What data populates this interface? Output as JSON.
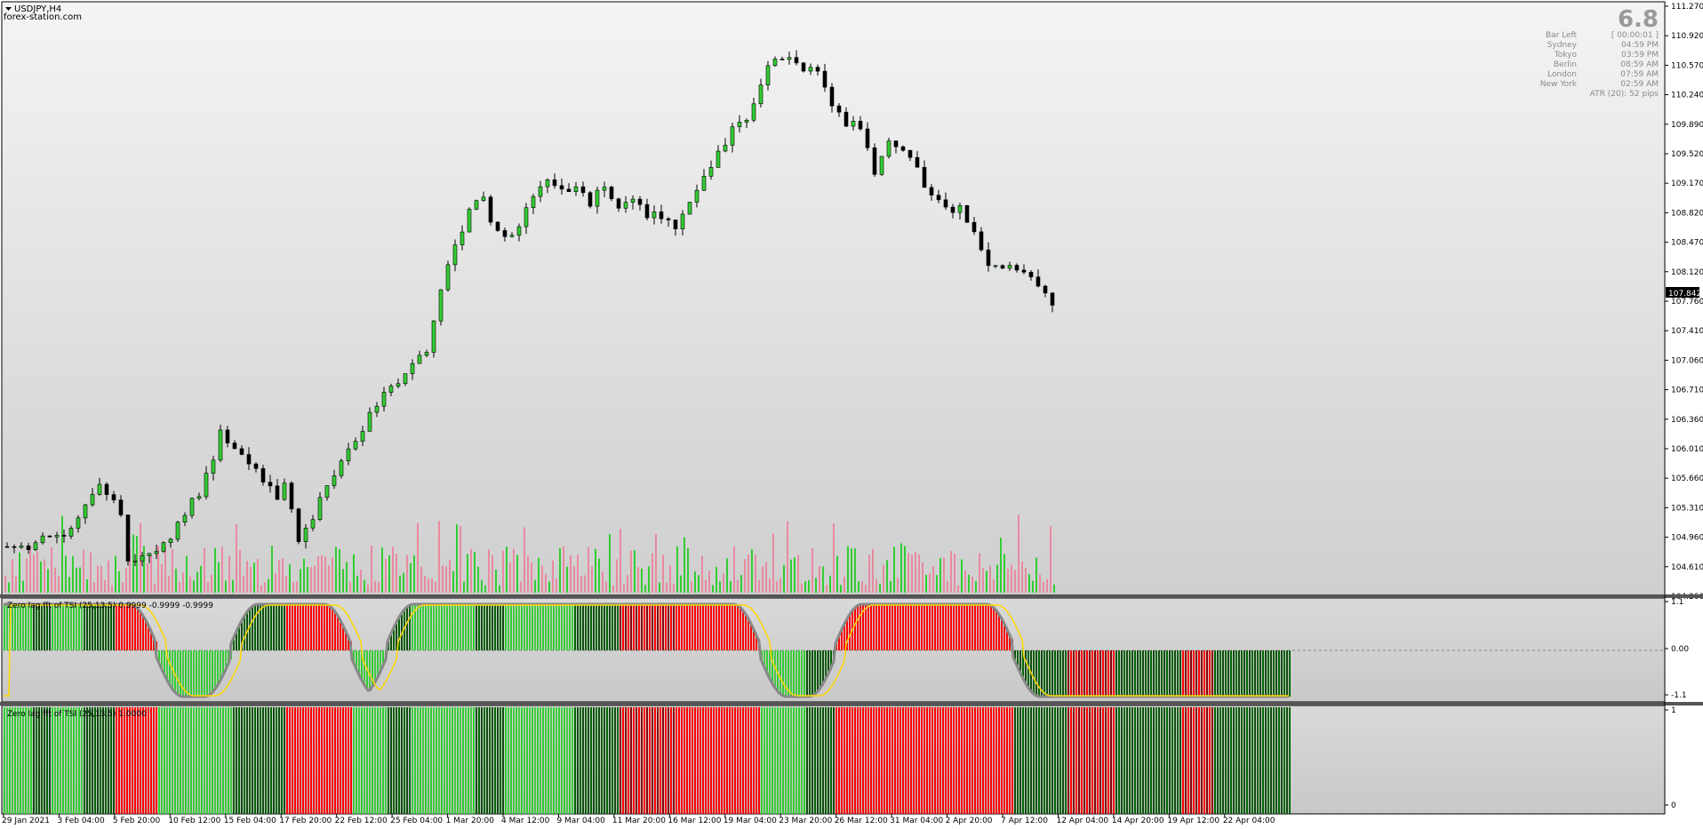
{
  "symbol": "USDJPY,H4",
  "watermark": "forex-station.com",
  "current_price": "107.842",
  "price_axis": [
    "111.270",
    "110.920",
    "110.570",
    "110.240",
    "109.890",
    "109.520",
    "109.170",
    "108.820",
    "108.470",
    "108.120",
    "107.760",
    "107.410",
    "107.060",
    "106.710",
    "106.360",
    "106.010",
    "105.660",
    "105.310",
    "104.960",
    "104.610",
    "104.260"
  ],
  "info_panel": {
    "big_value": "6.8",
    "rows": [
      {
        "label": "Bar Left",
        "value": "[ 00:00:01 ]"
      },
      {
        "label": "Sydney",
        "value": "04:59 PM"
      },
      {
        "label": "Tokyo",
        "value": "03:59 PM"
      },
      {
        "label": "Berlin",
        "value": "08:59 AM"
      },
      {
        "label": "London",
        "value": "07:59 AM"
      },
      {
        "label": "New York",
        "value": "02:59 AM"
      }
    ],
    "atr": "ATR (20): 52 pips"
  },
  "sub1": {
    "label": "Zero lag fft of TSI (25,13,5) 0.9999 -0.9999 -0.9999",
    "axis": [
      "1.1",
      "0.00",
      "-1.1"
    ]
  },
  "sub2": {
    "label": "Zero lag fft of TSI (25,13,5) 1.0000",
    "axis": [
      "1",
      "0"
    ]
  },
  "time_axis": [
    "29 Jan 2021",
    "3 Feb 04:00",
    "5 Feb 20:00",
    "10 Feb 12:00",
    "15 Feb 04:00",
    "17 Feb 20:00",
    "22 Feb 12:00",
    "25 Feb 04:00",
    "1 Mar 20:00",
    "4 Mar 12:00",
    "9 Mar 04:00",
    "11 Mar 20:00",
    "16 Mar 12:00",
    "19 Mar 04:00",
    "23 Mar 20:00",
    "26 Mar 12:00",
    "31 Mar 04:00",
    "2 Apr 20:00",
    "7 Apr 12:00",
    "12 Apr 04:00",
    "14 Apr 20:00",
    "19 Apr 12:00",
    "22 Apr 04:00"
  ],
  "colors": {
    "up": "#32cd32",
    "dark_green": "#006400",
    "light_green": "#32cd32",
    "red": "#ff0000",
    "dark_red": "#8b0000",
    "signal": "#ffd700",
    "vol_up": "#32cd32",
    "vol_down": "#e88aa0"
  },
  "price_path": [
    [
      0,
      104.85
    ],
    [
      3,
      104.85
    ],
    [
      6,
      104.97
    ],
    [
      8,
      105.0
    ],
    [
      10,
      105.25
    ],
    [
      12,
      105.45
    ],
    [
      13,
      105.55
    ],
    [
      15,
      105.45
    ],
    [
      16,
      105.2
    ],
    [
      17,
      104.7
    ],
    [
      19,
      104.75
    ],
    [
      21,
      104.8
    ],
    [
      23,
      104.95
    ],
    [
      25,
      105.25
    ],
    [
      27,
      105.5
    ],
    [
      29,
      105.85
    ],
    [
      30,
      106.2
    ],
    [
      31,
      106.1
    ],
    [
      33,
      105.9
    ],
    [
      35,
      105.8
    ],
    [
      37,
      105.55
    ],
    [
      38,
      105.4
    ],
    [
      39,
      105.55
    ],
    [
      40,
      105.35
    ],
    [
      41,
      104.95
    ],
    [
      43,
      105.2
    ],
    [
      45,
      105.6
    ],
    [
      47,
      105.9
    ],
    [
      48,
      106.05
    ],
    [
      50,
      106.25
    ],
    [
      52,
      106.55
    ],
    [
      54,
      106.8
    ],
    [
      56,
      106.85
    ],
    [
      57,
      107.0
    ],
    [
      59,
      107.2
    ],
    [
      61,
      107.9
    ],
    [
      63,
      108.4
    ],
    [
      65,
      108.8
    ],
    [
      67,
      109.05
    ],
    [
      68,
      108.75
    ],
    [
      70,
      108.55
    ],
    [
      72,
      108.65
    ],
    [
      74,
      109.0
    ],
    [
      76,
      109.2
    ],
    [
      78,
      109.1
    ],
    [
      80,
      109.15
    ],
    [
      82,
      108.95
    ],
    [
      84,
      109.1
    ],
    [
      86,
      108.9
    ],
    [
      88,
      108.95
    ],
    [
      90,
      108.8
    ],
    [
      92,
      108.75
    ],
    [
      94,
      108.6
    ],
    [
      96,
      108.9
    ],
    [
      98,
      109.2
    ],
    [
      100,
      109.5
    ],
    [
      102,
      109.8
    ],
    [
      104,
      109.9
    ],
    [
      106,
      110.35
    ],
    [
      108,
      110.7
    ],
    [
      110,
      110.65
    ],
    [
      112,
      110.55
    ],
    [
      114,
      110.5
    ],
    [
      116,
      110.05
    ],
    [
      118,
      109.9
    ],
    [
      120,
      109.85
    ],
    [
      122,
      109.3
    ],
    [
      124,
      109.7
    ],
    [
      126,
      109.6
    ],
    [
      128,
      109.3
    ],
    [
      130,
      109.0
    ],
    [
      132,
      108.9
    ],
    [
      134,
      108.85
    ],
    [
      136,
      108.6
    ],
    [
      138,
      108.15
    ],
    [
      140,
      108.2
    ],
    [
      142,
      108.15
    ],
    [
      144,
      108.05
    ],
    [
      147,
      107.75
    ]
  ]
}
